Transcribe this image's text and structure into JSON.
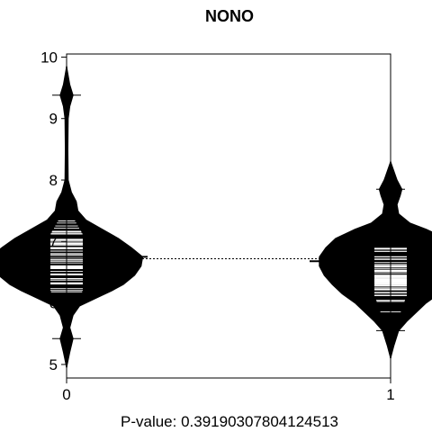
{
  "chart_data": {
    "type": "beanplot",
    "title": "NONO",
    "xlabel": "P-value: 0.39190307804124513",
    "ylabel": "",
    "categories": [
      "0",
      "1"
    ],
    "ylim": [
      4.78,
      10.05
    ],
    "xlim": [
      0.5,
      1.5
    ],
    "y_ticks": [
      5,
      6,
      7,
      8,
      9,
      10
    ],
    "grid": false,
    "overall_mean": 6.72,
    "groups": [
      {
        "name": "0",
        "mean": 6.75,
        "min": 4.95,
        "max": 9.85,
        "outliers": [
          5.42,
          9.38
        ],
        "density": [
          [
            4.95,
            0.0
          ],
          [
            5.2,
            0.02
          ],
          [
            5.42,
            0.04
          ],
          [
            5.6,
            0.02
          ],
          [
            5.8,
            0.04
          ],
          [
            5.95,
            0.08
          ],
          [
            6.1,
            0.2
          ],
          [
            6.2,
            0.28
          ],
          [
            6.3,
            0.35
          ],
          [
            6.45,
            0.42
          ],
          [
            6.6,
            0.46
          ],
          [
            6.75,
            0.47
          ],
          [
            6.9,
            0.4
          ],
          [
            7.05,
            0.32
          ],
          [
            7.2,
            0.22
          ],
          [
            7.35,
            0.12
          ],
          [
            7.5,
            0.07
          ],
          [
            7.65,
            0.06
          ],
          [
            7.8,
            0.03
          ],
          [
            8.0,
            0.01
          ],
          [
            8.5,
            0.008
          ],
          [
            9.0,
            0.01
          ],
          [
            9.2,
            0.02
          ],
          [
            9.38,
            0.04
          ],
          [
            9.55,
            0.02
          ],
          [
            9.85,
            0.0
          ]
        ]
      },
      {
        "name": "1",
        "mean": 6.68,
        "min": 5.1,
        "max": 8.3,
        "outliers": [
          5.55,
          7.85
        ],
        "density": [
          [
            5.1,
            0.0
          ],
          [
            5.3,
            0.02
          ],
          [
            5.55,
            0.05
          ],
          [
            5.7,
            0.1
          ],
          [
            5.85,
            0.16
          ],
          [
            6.0,
            0.22
          ],
          [
            6.15,
            0.3
          ],
          [
            6.3,
            0.36
          ],
          [
            6.45,
            0.41
          ],
          [
            6.6,
            0.44
          ],
          [
            6.75,
            0.44
          ],
          [
            6.9,
            0.4
          ],
          [
            7.05,
            0.34
          ],
          [
            7.2,
            0.22
          ],
          [
            7.3,
            0.12
          ],
          [
            7.45,
            0.05
          ],
          [
            7.6,
            0.04
          ],
          [
            7.75,
            0.06
          ],
          [
            7.85,
            0.07
          ],
          [
            8.0,
            0.04
          ],
          [
            8.15,
            0.02
          ],
          [
            8.3,
            0.0
          ]
        ]
      }
    ]
  }
}
